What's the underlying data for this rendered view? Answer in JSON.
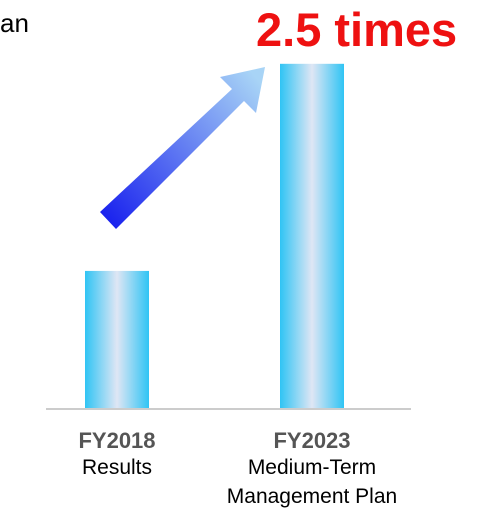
{
  "header": {
    "partial_text": "an",
    "callout": "2.5 times"
  },
  "colors": {
    "bar_edge": "#2fc4f4",
    "bar_center": "#dfe6f4",
    "arrow_dark": "#1a22ee",
    "arrow_light": "#a8d4f6",
    "callout": "#ee1111",
    "baseline": "#cccccc"
  },
  "chart_data": {
    "type": "bar",
    "categories": [
      "FY2018",
      "FY2023"
    ],
    "category_sublabels": [
      [
        "Results"
      ],
      [
        "Medium-Term",
        "Management Plan"
      ]
    ],
    "values": [
      1,
      2.5
    ],
    "ylim": [
      0,
      2.6
    ],
    "grid": false,
    "annotation": "2.5 times",
    "annotation_arrow": true
  }
}
